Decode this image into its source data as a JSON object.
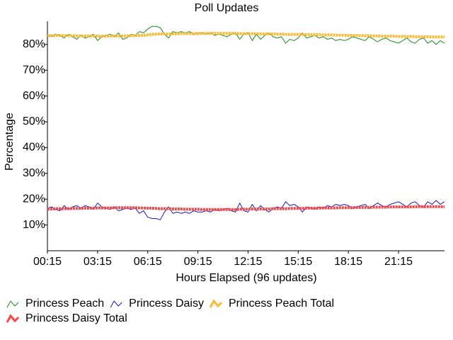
{
  "chart_data": {
    "type": "line",
    "title": "Poll Updates",
    "x_label": "Hours Elapsed (96 updates)",
    "y_label": "Percentage",
    "categories": [
      "00:15",
      null,
      null,
      null,
      null,
      null,
      null,
      null,
      null,
      null,
      null,
      null,
      "03:15",
      null,
      null,
      null,
      null,
      null,
      null,
      null,
      null,
      null,
      null,
      null,
      "06:15",
      null,
      null,
      null,
      null,
      null,
      null,
      null,
      null,
      null,
      null,
      null,
      "09:15",
      null,
      null,
      null,
      null,
      null,
      null,
      null,
      null,
      null,
      null,
      null,
      "12:15",
      null,
      null,
      null,
      null,
      null,
      null,
      null,
      null,
      null,
      null,
      null,
      "15:15",
      null,
      null,
      null,
      null,
      null,
      null,
      null,
      null,
      null,
      null,
      null,
      "18:15",
      null,
      null,
      null,
      null,
      null,
      null,
      null,
      null,
      null,
      null,
      null,
      "21:15",
      null,
      null,
      null,
      null,
      null,
      null,
      null,
      null,
      null,
      null,
      null
    ],
    "ylim": [
      0,
      89
    ],
    "yticks": [
      {
        "value": 10,
        "label": "10%"
      },
      {
        "value": 20,
        "label": "20%"
      },
      {
        "value": 30,
        "label": "30%"
      },
      {
        "value": 40,
        "label": "40%"
      },
      {
        "value": 50,
        "label": "50%"
      },
      {
        "value": 60,
        "label": "60%"
      },
      {
        "value": 70,
        "label": "70%"
      },
      {
        "value": 80,
        "label": "80%"
      }
    ],
    "grid": false,
    "legend": "bottom",
    "series": [
      {
        "name": "Princess Peach",
        "color": "#1a8c1a",
        "width": 1,
        "values": [
          83.5,
          83,
          84,
          83.5,
          82.5,
          84,
          83,
          82,
          83.5,
          82.5,
          83,
          84,
          81.5,
          83,
          83.5,
          84,
          83,
          84.5,
          82,
          82.5,
          84,
          83.5,
          85,
          84.5,
          86,
          87,
          87,
          86.5,
          84,
          82.5,
          85,
          84.5,
          85,
          84.5,
          85,
          84,
          84.5,
          84.5,
          84,
          84.5,
          83.5,
          84,
          83.5,
          83,
          84,
          84.5,
          82,
          84,
          84.5,
          81.5,
          84,
          82,
          83.5,
          84.5,
          83,
          82.5,
          83,
          80.5,
          82,
          81.5,
          82.5,
          84.5,
          82.5,
          83,
          83.5,
          82.5,
          83,
          82,
          82.5,
          81.5,
          82,
          81.5,
          82,
          83,
          82.5,
          82,
          81.5,
          83,
          82,
          81,
          82,
          82.5,
          81.5,
          81,
          80.5,
          81.5,
          82.5,
          81,
          80.5,
          82,
          82.5,
          80.5,
          81.5,
          80,
          81.5,
          80.5
        ]
      },
      {
        "name": "Princess Daisy",
        "color": "#1a1acc",
        "width": 1,
        "values": [
          16.5,
          17,
          16,
          15.5,
          17.5,
          16,
          17,
          17.5,
          16.5,
          17.5,
          17,
          16,
          18.5,
          17,
          16.5,
          16,
          17,
          15.5,
          16,
          16.5,
          16,
          16.5,
          14.5,
          15.5,
          13,
          12.5,
          12.5,
          12,
          15,
          17,
          14.5,
          15,
          14.5,
          15,
          14.5,
          15.5,
          15,
          15,
          15.5,
          15,
          16,
          15.5,
          16,
          16.5,
          15.5,
          15,
          18.5,
          15.5,
          15,
          18,
          15.5,
          17.5,
          16,
          15,
          16.5,
          17,
          16.5,
          19,
          17.5,
          18,
          17,
          15,
          17,
          16.5,
          16,
          17,
          16.5,
          17.5,
          17,
          18,
          17.5,
          18,
          17.5,
          16.5,
          17,
          17.5,
          18,
          16.5,
          17.5,
          18.5,
          17.5,
          17,
          18,
          18.5,
          19,
          18,
          17,
          18.5,
          19,
          17.5,
          17,
          19,
          18,
          19.5,
          18,
          19
        ]
      },
      {
        "name": "Princess Peach Total",
        "color": "#ffb833",
        "width": 4,
        "values": [
          83.5,
          83.4,
          83.5,
          83.5,
          83.4,
          83.4,
          83.4,
          83.3,
          83.3,
          83.3,
          83.3,
          83.3,
          83.2,
          83.2,
          83.2,
          83.3,
          83.3,
          83.3,
          83.3,
          83.3,
          83.4,
          83.4,
          83.5,
          83.5,
          83.7,
          83.9,
          84.0,
          84.1,
          84.1,
          84.0,
          84.1,
          84.1,
          84.2,
          84.2,
          84.2,
          84.2,
          84.2,
          84.3,
          84.3,
          84.3,
          84.3,
          84.3,
          84.3,
          84.3,
          84.3,
          84.3,
          84.2,
          84.2,
          84.2,
          84.2,
          84.2,
          84.1,
          84.1,
          84.1,
          84.1,
          84.0,
          84.0,
          83.9,
          83.9,
          83.9,
          83.9,
          83.9,
          83.8,
          83.8,
          83.8,
          83.8,
          83.7,
          83.7,
          83.7,
          83.6,
          83.6,
          83.6,
          83.5,
          83.5,
          83.5,
          83.4,
          83.4,
          83.4,
          83.3,
          83.3,
          83.2,
          83.2,
          83.2,
          83.2,
          83.1,
          83.1,
          83.1,
          83.1,
          83.0,
          83.0,
          83.0,
          83.0,
          82.9,
          82.9,
          82.9,
          82.9
        ]
      },
      {
        "name": "Princess Daisy Total",
        "color": "#ff4444",
        "width": 4,
        "values": [
          16.2,
          16.2,
          16.3,
          16.3,
          16.3,
          16.3,
          16.4,
          16.4,
          16.4,
          16.5,
          16.5,
          16.5,
          16.6,
          16.6,
          16.6,
          16.6,
          16.7,
          16.7,
          16.7,
          16.7,
          16.7,
          16.7,
          16.6,
          16.6,
          16.5,
          16.5,
          16.4,
          16.3,
          16.3,
          16.3,
          16.2,
          16.2,
          16.2,
          16.1,
          16.1,
          16.1,
          16.1,
          16.0,
          16.0,
          16.0,
          16.0,
          16.0,
          16.0,
          16.0,
          16.0,
          16.0,
          16.1,
          16.1,
          16.1,
          16.2,
          16.2,
          16.2,
          16.2,
          16.2,
          16.3,
          16.3,
          16.3,
          16.3,
          16.4,
          16.4,
          16.4,
          16.4,
          16.5,
          16.5,
          16.5,
          16.5,
          16.6,
          16.6,
          16.6,
          16.6,
          16.7,
          16.7,
          16.7,
          16.7,
          16.8,
          16.8,
          16.8,
          16.8,
          16.9,
          16.9,
          16.9,
          16.9,
          17.0,
          17.0,
          17.0,
          17.0,
          17.0,
          17.0,
          17.1,
          17.1,
          17.1,
          17.1,
          17.1,
          17.1,
          17.1,
          17.1
        ]
      }
    ]
  }
}
